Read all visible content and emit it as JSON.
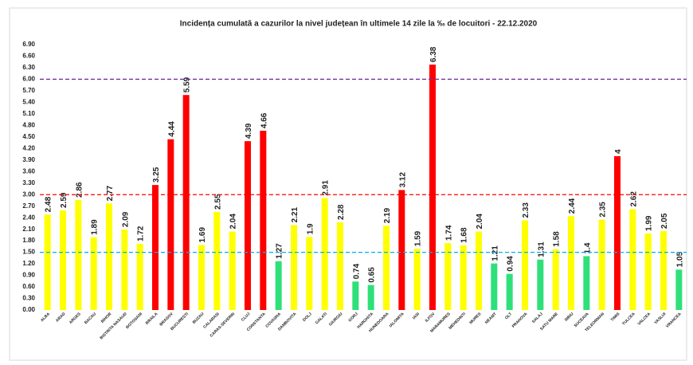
{
  "chart_data": {
    "type": "bar",
    "title": "Incidența cumulată a cazurilor la nivel județean în ultimele 14 zile la ‰ de locuitori - 22.12.2020",
    "categories": [
      "ALBA",
      "ARAD",
      "ARGES",
      "BACAU",
      "BIHOR",
      "BISTRITA NASAUD",
      "BOTOSANI",
      "BRAILA",
      "BRASOV",
      "BUCURESTI",
      "BUZAU",
      "CALARASI",
      "CARAS-SEVERIN",
      "CLUJ",
      "CONSTANTA",
      "COVASNA",
      "DAMBOVITA",
      "DOLJ",
      "GALATI",
      "GIURGIU",
      "GORJ",
      "HARGHITA",
      "HUNEDOARA",
      "IALOMITA",
      "IASI",
      "ILFOV",
      "MARAMURES",
      "MEHEDINTI",
      "MURES",
      "NEAMT",
      "OLT",
      "PRAHOVA",
      "SALAJ",
      "SATU MARE",
      "SIBIU",
      "SUCEAVA",
      "TELEORMAN",
      "TIMIS",
      "TULCEA",
      "VALCEA",
      "VASLUI",
      "VRANCEA"
    ],
    "values": [
      2.48,
      2.59,
      2.86,
      1.89,
      2.77,
      2.09,
      1.72,
      3.25,
      4.44,
      5.59,
      1.69,
      2.55,
      2.04,
      4.39,
      4.66,
      1.27,
      2.21,
      1.9,
      2.91,
      2.28,
      0.74,
      0.65,
      2.19,
      3.12,
      1.59,
      6.38,
      1.74,
      1.68,
      2.04,
      1.21,
      0.94,
      2.33,
      1.31,
      1.58,
      2.44,
      1.4,
      2.35,
      4,
      2.62,
      1.99,
      2.05,
      1.05
    ],
    "colors": [
      "#ffff00",
      "#ffff00",
      "#ffff00",
      "#ffff00",
      "#ffff00",
      "#ffff00",
      "#ffff00",
      "#ff0000",
      "#ff0000",
      "#ff0000",
      "#ffff00",
      "#ffff00",
      "#ffff00",
      "#ff0000",
      "#ff0000",
      "#2fe07a",
      "#ffff00",
      "#ffff00",
      "#ffff00",
      "#ffff00",
      "#2fe07a",
      "#2fe07a",
      "#ffff00",
      "#ff0000",
      "#ffff00",
      "#ff0000",
      "#ffff00",
      "#ffff00",
      "#ffff00",
      "#2fe07a",
      "#2fe07a",
      "#ffff00",
      "#2fe07a",
      "#ffff00",
      "#ffff00",
      "#2fe07a",
      "#ffff00",
      "#ff0000",
      "#ffff00",
      "#ffff00",
      "#ffff00",
      "#2fe07a"
    ],
    "reference_lines": [
      {
        "value": 6,
        "color": "#7030a0"
      },
      {
        "value": 3,
        "color": "#ff0000"
      },
      {
        "value": 1.5,
        "color": "#00b0f0"
      }
    ],
    "ylim": [
      0,
      6.9
    ],
    "yticks": [
      {
        "value": 0,
        "label": "0.00"
      },
      {
        "value": 0.3,
        "label": "0.30"
      },
      {
        "value": 0.6,
        "label": "0.60"
      },
      {
        "value": 0.9,
        "label": "0.90"
      },
      {
        "value": 1.2,
        "label": "1.20"
      },
      {
        "value": 1.5,
        "label": "1.50"
      },
      {
        "value": 1.8,
        "label": "1.80"
      },
      {
        "value": 2.1,
        "label": "2.10"
      },
      {
        "value": 2.4,
        "label": "2.40"
      },
      {
        "value": 2.7,
        "label": "2.70"
      },
      {
        "value": 3,
        "label": "3.00"
      },
      {
        "value": 3.3,
        "label": "3.30"
      },
      {
        "value": 3.6,
        "label": "3.60"
      },
      {
        "value": 3.9,
        "label": "3.90"
      },
      {
        "value": 4.2,
        "label": "4.20"
      },
      {
        "value": 4.5,
        "label": "4.50"
      },
      {
        "value": 4.8,
        "label": "4.80"
      },
      {
        "value": 5.1,
        "label": "5.10"
      },
      {
        "value": 5.4,
        "label": "5.40"
      },
      {
        "value": 5.7,
        "label": "5.70"
      },
      {
        "value": 6,
        "label": "6.00"
      },
      {
        "value": 6.3,
        "label": "6.30"
      },
      {
        "value": 6.6,
        "label": "6.60"
      },
      {
        "value": 6.9,
        "label": "6.90"
      }
    ],
    "grid": false
  }
}
